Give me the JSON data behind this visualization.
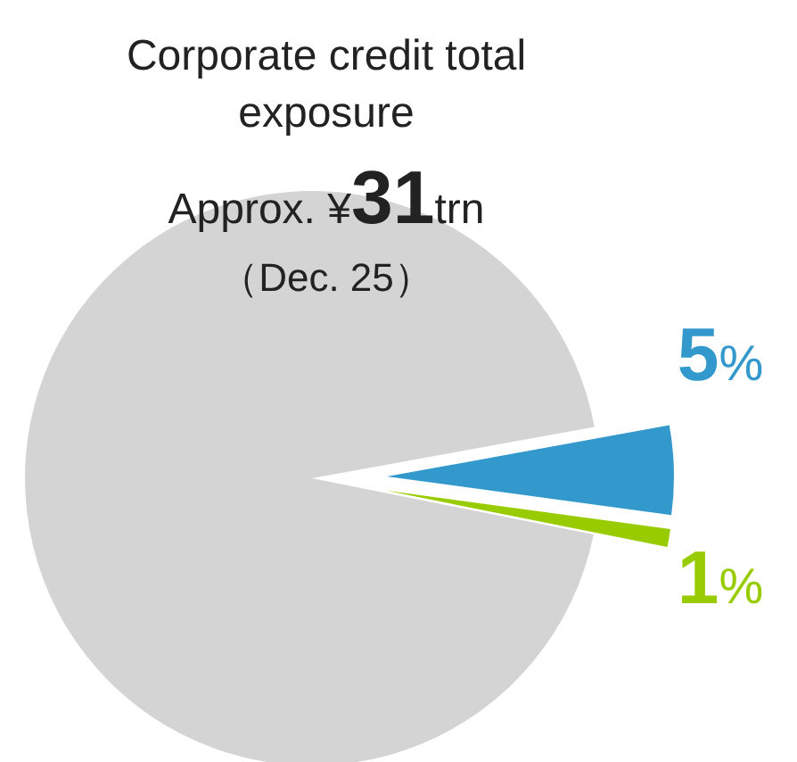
{
  "chart_data": {
    "type": "pie",
    "title": "Corporate credit total exposure",
    "subtitle": "Approx. ¥31trn",
    "annotations": [
      "（Dec. 25）"
    ],
    "categories": [
      null,
      null,
      null
    ],
    "values": [
      94,
      5,
      1
    ],
    "colors": [
      "#d4d4d4",
      "#3399cc",
      "#99cc00"
    ],
    "value_labels": [
      null,
      "5%",
      "1%"
    ]
  }
}
